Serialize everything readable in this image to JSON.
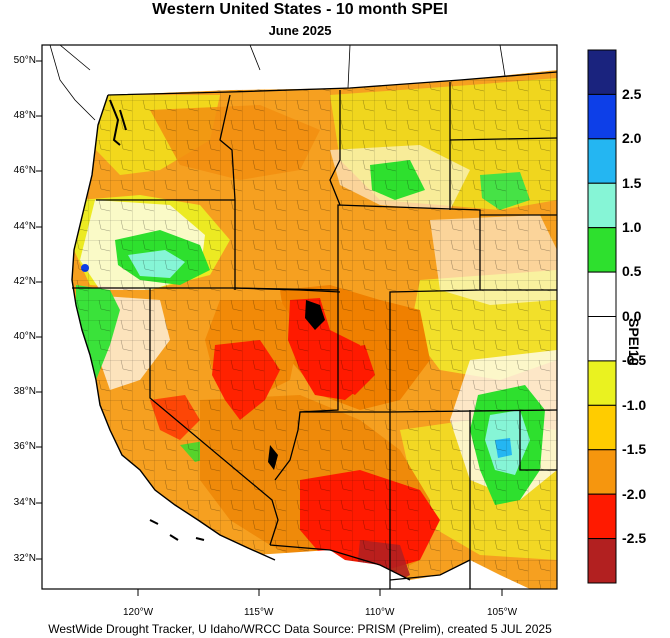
{
  "title": "Western United States - 10 month SPEI",
  "subtitle": "June 2025",
  "credit": "WestWide Drought Tracker, U Idaho/WRCC Data Source: PRISM (Prelim), created  5 JUL 2025",
  "colorbar": {
    "title": "SPEI10",
    "bins": [
      {
        "color": "#1a237e"
      },
      {
        "color": "#0d3fe8"
      },
      {
        "color": "#24b6f2"
      },
      {
        "color": "#86f5d6"
      },
      {
        "color": "#2ee02e"
      },
      {
        "color": "#ffffff"
      },
      {
        "color": "#ffffff"
      },
      {
        "color": "#eaf220"
      },
      {
        "color": "#ffcc00"
      },
      {
        "color": "#f6960e"
      },
      {
        "color": "#ff1a00"
      },
      {
        "color": "#b22020"
      }
    ],
    "labels": [
      "2.5",
      "2.0",
      "1.5",
      "1.0",
      "0.5",
      "0.0",
      "-0.5",
      "-1.0",
      "-1.5",
      "-2.0",
      "-2.5"
    ]
  },
  "lat_labels": [
    "50°N",
    "48°N",
    "46°N",
    "44°N",
    "42°N",
    "40°N",
    "38°N",
    "36°N",
    "34°N",
    "32°N"
  ],
  "lon_labels": [
    "120°W",
    "115°W",
    "110°W",
    "105°W"
  ]
}
